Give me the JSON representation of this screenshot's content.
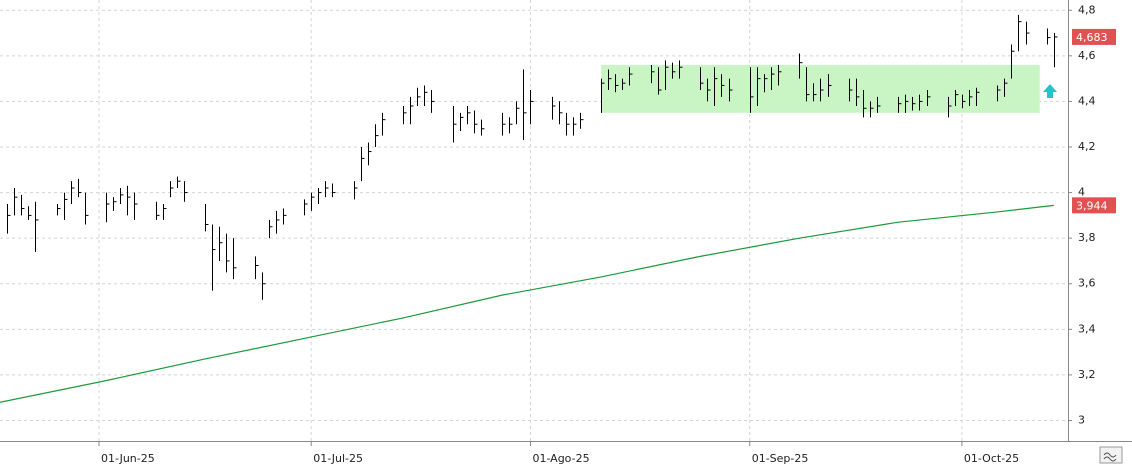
{
  "chart_data": {
    "type": "ohlc",
    "xlim": [
      "2025-05-18",
      "2025-10-16"
    ],
    "xticks": [
      {
        "value": "2025-06-01",
        "label": "01-Jun-25"
      },
      {
        "value": "2025-07-01",
        "label": "01-Jul-25"
      },
      {
        "value": "2025-08-01",
        "label": "01-Ago-25"
      },
      {
        "value": "2025-09-01",
        "label": "01-Sep-25"
      },
      {
        "value": "2025-10-01",
        "label": "01-Oct-25"
      }
    ],
    "ylim": [
      2.91,
      4.845
    ],
    "yticks": [
      3,
      {
        "value": 3.2,
        "label": "3,2"
      },
      {
        "value": 3.4,
        "label": "3,4"
      },
      {
        "value": 3.6,
        "label": "3,6"
      },
      {
        "value": 3.8,
        "label": "3,8"
      },
      4,
      {
        "value": 4.2,
        "label": "4,2"
      },
      {
        "value": 4.4,
        "label": "4,4"
      },
      {
        "value": 4.6,
        "label": "4,6"
      },
      {
        "value": 4.8,
        "label": "4,8"
      }
    ],
    "grid": true,
    "ohlc": {
      "color": "#000000",
      "x": [
        "2025-05-19",
        "2025-05-20",
        "2025-05-21",
        "2025-05-22",
        "2025-05-23",
        "2025-05-26",
        "2025-05-27",
        "2025-05-28",
        "2025-05-29",
        "2025-05-30",
        "2025-06-02",
        "2025-06-03",
        "2025-06-04",
        "2025-06-05",
        "2025-06-06",
        "2025-06-09",
        "2025-06-10",
        "2025-06-11",
        "2025-06-12",
        "2025-06-13",
        "2025-06-16",
        "2025-06-17",
        "2025-06-18",
        "2025-06-19",
        "2025-06-20",
        "2025-06-23",
        "2025-06-24",
        "2025-06-25",
        "2025-06-26",
        "2025-06-27",
        "2025-06-30",
        "2025-07-01",
        "2025-07-02",
        "2025-07-03",
        "2025-07-04",
        "2025-07-07",
        "2025-07-08",
        "2025-07-09",
        "2025-07-10",
        "2025-07-11",
        "2025-07-14",
        "2025-07-15",
        "2025-07-16",
        "2025-07-17",
        "2025-07-18",
        "2025-07-21",
        "2025-07-22",
        "2025-07-23",
        "2025-07-24",
        "2025-07-25",
        "2025-07-28",
        "2025-07-29",
        "2025-07-30",
        "2025-07-31",
        "2025-08-01",
        "2025-08-04",
        "2025-08-05",
        "2025-08-06",
        "2025-08-07",
        "2025-08-08",
        "2025-08-11",
        "2025-08-12",
        "2025-08-13",
        "2025-08-14",
        "2025-08-15",
        "2025-08-18",
        "2025-08-19",
        "2025-08-20",
        "2025-08-21",
        "2025-08-22",
        "2025-08-25",
        "2025-08-26",
        "2025-08-27",
        "2025-08-28",
        "2025-08-29",
        "2025-09-01",
        "2025-09-02",
        "2025-09-03",
        "2025-09-04",
        "2025-09-05",
        "2025-09-08",
        "2025-09-09",
        "2025-09-10",
        "2025-09-11",
        "2025-09-12",
        "2025-09-15",
        "2025-09-16",
        "2025-09-17",
        "2025-09-18",
        "2025-09-19",
        "2025-09-22",
        "2025-09-23",
        "2025-09-24",
        "2025-09-25",
        "2025-09-26",
        "2025-09-29",
        "2025-09-30",
        "2025-10-01",
        "2025-10-02",
        "2025-10-03",
        "2025-10-06",
        "2025-10-07",
        "2025-10-08",
        "2025-10-09",
        "2025-10-10",
        "2025-10-13",
        "2025-10-14"
      ],
      "high": [
        3.95,
        4.02,
        3.99,
        3.94,
        3.96,
        3.95,
        4.0,
        4.05,
        4.06,
        4.0,
        4.0,
        3.98,
        4.02,
        4.03,
        4.0,
        3.96,
        3.95,
        4.05,
        4.07,
        4.05,
        3.95,
        3.86,
        3.85,
        3.82,
        3.8,
        3.72,
        3.65,
        3.88,
        3.92,
        3.93,
        3.97,
        4.0,
        4.02,
        4.05,
        4.04,
        4.05,
        4.2,
        4.22,
        4.3,
        4.35,
        4.38,
        4.42,
        4.46,
        4.47,
        4.45,
        4.38,
        4.35,
        4.38,
        4.36,
        4.32,
        4.35,
        4.33,
        4.4,
        4.54,
        4.45,
        4.42,
        4.4,
        4.35,
        4.33,
        4.35,
        4.5,
        4.54,
        4.52,
        4.5,
        4.55,
        4.56,
        4.55,
        4.58,
        4.57,
        4.58,
        4.55,
        4.5,
        4.55,
        4.52,
        4.5,
        4.55,
        4.55,
        4.52,
        4.55,
        4.56,
        4.61,
        4.55,
        4.48,
        4.5,
        4.52,
        4.5,
        4.5,
        4.45,
        4.4,
        4.42,
        4.42,
        4.43,
        4.42,
        4.43,
        4.45,
        4.42,
        4.45,
        4.43,
        4.45,
        4.46,
        4.47,
        4.5,
        4.65,
        4.78,
        4.75,
        4.72,
        4.7
      ],
      "low": [
        3.82,
        3.9,
        3.9,
        3.88,
        3.74,
        3.9,
        3.88,
        3.95,
        3.98,
        3.86,
        3.87,
        3.92,
        3.95,
        3.9,
        3.88,
        3.88,
        3.88,
        3.98,
        4.02,
        3.96,
        3.83,
        3.57,
        3.7,
        3.65,
        3.62,
        3.62,
        3.53,
        3.8,
        3.82,
        3.86,
        3.9,
        3.92,
        3.95,
        3.98,
        3.98,
        3.97,
        4.05,
        4.12,
        4.2,
        4.25,
        4.3,
        4.3,
        4.38,
        4.38,
        4.35,
        4.22,
        4.27,
        4.3,
        4.26,
        4.25,
        4.25,
        4.26,
        4.3,
        4.23,
        4.3,
        4.32,
        4.3,
        4.25,
        4.25,
        4.28,
        4.35,
        4.45,
        4.44,
        4.45,
        4.47,
        4.48,
        4.43,
        4.45,
        4.5,
        4.5,
        4.45,
        4.4,
        4.38,
        4.42,
        4.4,
        4.35,
        4.38,
        4.44,
        4.45,
        4.47,
        4.5,
        4.4,
        4.4,
        4.4,
        4.42,
        4.4,
        4.38,
        4.33,
        4.33,
        4.35,
        4.35,
        4.35,
        4.36,
        4.36,
        4.38,
        4.33,
        4.38,
        4.37,
        4.38,
        4.38,
        4.4,
        4.42,
        4.5,
        4.62,
        4.65,
        4.65,
        4.55
      ],
      "close": [
        3.9,
        3.98,
        3.93,
        3.9,
        3.88,
        3.93,
        3.97,
        4.02,
        4.0,
        3.9,
        3.95,
        3.96,
        3.99,
        3.98,
        3.95,
        3.9,
        3.93,
        4.02,
        4.05,
        4.0,
        3.86,
        3.75,
        3.78,
        3.7,
        3.67,
        3.68,
        3.6,
        3.85,
        3.88,
        3.9,
        3.95,
        3.98,
        4.0,
        4.02,
        4.0,
        4.02,
        4.15,
        4.18,
        4.25,
        4.32,
        4.35,
        4.38,
        4.42,
        4.44,
        4.4,
        4.3,
        4.33,
        4.35,
        4.3,
        4.28,
        4.3,
        4.3,
        4.37,
        4.35,
        4.4,
        4.38,
        4.35,
        4.3,
        4.3,
        4.32,
        4.48,
        4.5,
        4.47,
        4.48,
        4.52,
        4.53,
        4.45,
        4.55,
        4.53,
        4.55,
        4.48,
        4.45,
        4.5,
        4.47,
        4.45,
        4.42,
        4.5,
        4.5,
        4.52,
        4.53,
        4.57,
        4.43,
        4.43,
        4.45,
        4.47,
        4.45,
        4.42,
        4.37,
        4.37,
        4.38,
        4.39,
        4.4,
        4.39,
        4.4,
        4.42,
        4.38,
        4.43,
        4.4,
        4.42,
        4.44,
        4.45,
        4.48,
        4.62,
        4.75,
        4.7,
        4.68,
        4.683
      ]
    },
    "last_price": {
      "value": 4.683,
      "label": "4,683",
      "color": "#e05252"
    },
    "ma": {
      "color": "#1a9a3c",
      "x": [
        "2025-05-18",
        "2025-06-02",
        "2025-06-16",
        "2025-06-30",
        "2025-07-14",
        "2025-07-28",
        "2025-08-11",
        "2025-08-25",
        "2025-09-08",
        "2025-09-22",
        "2025-10-06",
        "2025-10-14"
      ],
      "values": [
        3.08,
        3.175,
        3.27,
        3.36,
        3.45,
        3.55,
        3.63,
        3.72,
        3.8,
        3.87,
        3.915,
        3.944
      ],
      "last": {
        "value": 3.944,
        "label": "3,944",
        "color": "#e05252"
      }
    },
    "zone": {
      "x": [
        "2025-08-11",
        "2025-10-12"
      ],
      "y": [
        4.35,
        4.56
      ],
      "color": "#c9f5c4"
    }
  }
}
